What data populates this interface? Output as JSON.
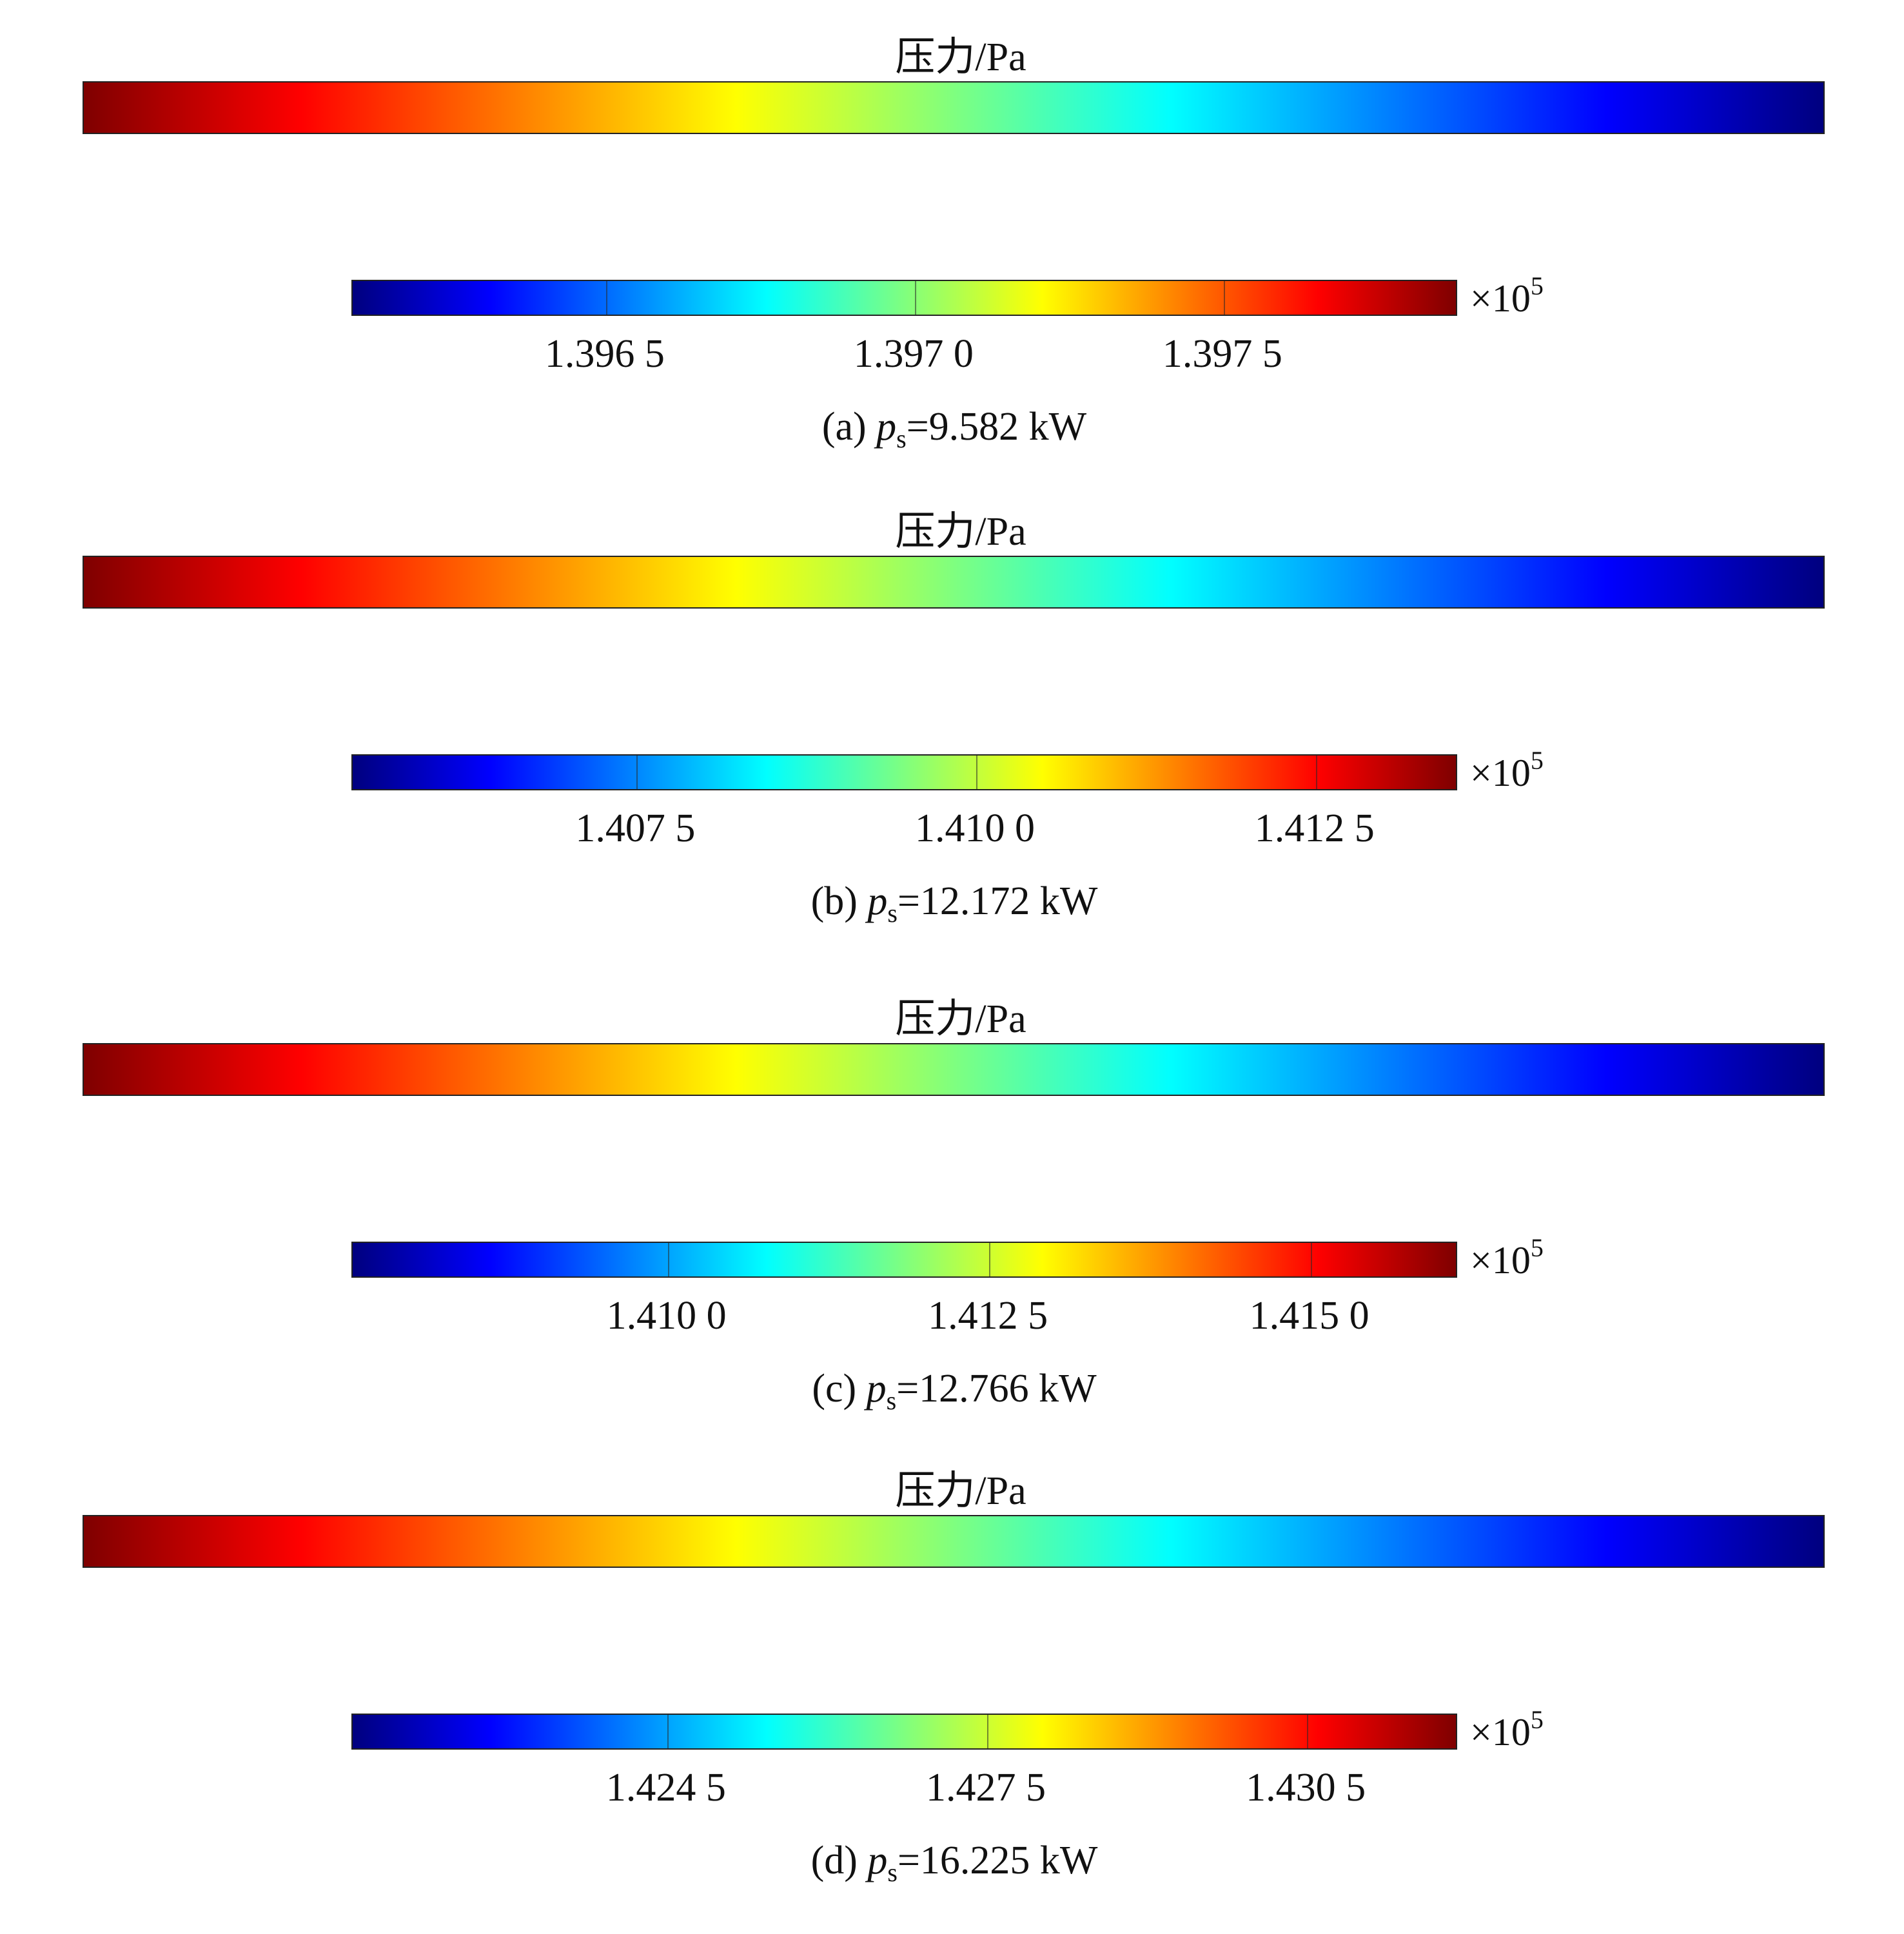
{
  "colors": {
    "colormap": [
      "#00007f",
      "#0000ff",
      "#007fff",
      "#00ffff",
      "#7fff7f",
      "#ffff00",
      "#ff7f00",
      "#ff0000",
      "#7f0000"
    ]
  },
  "chart_data": [
    {
      "type": "heatmap",
      "title": "压力/Pa",
      "caption_prefix": "(a) ",
      "caption_var": "p",
      "caption_sub": "s",
      "caption_value": "=9.582 kW",
      "colorbar": {
        "multiplier_base": "×10",
        "multiplier_exp": "5",
        "tick_labels": [
          "1.396 5",
          "1.397 0",
          "1.397 5"
        ],
        "tick_values": [
          1.3965,
          1.397,
          1.3975
        ],
        "range": [
          1.39609,
          1.39788
        ],
        "colormap": "jet"
      },
      "field_direction": "high-left-to-low-right"
    },
    {
      "type": "heatmap",
      "title": "压力/Pa",
      "caption_prefix": "(b) ",
      "caption_var": "p",
      "caption_sub": "s",
      "caption_value": "=12.172 kW",
      "colorbar": {
        "multiplier_base": "×10",
        "multiplier_exp": "5",
        "tick_labels": [
          "1.407 5",
          "1.410 0",
          "1.412 5"
        ],
        "tick_values": [
          1.4075,
          1.41,
          1.4125
        ],
        "range": [
          1.40541,
          1.41355
        ],
        "colormap": "jet"
      },
      "field_direction": "high-left-to-low-right"
    },
    {
      "type": "heatmap",
      "title": "压力/Pa",
      "caption_prefix": "(c) ",
      "caption_var": "p",
      "caption_sub": "s",
      "caption_value": "=12.766 kW",
      "colorbar": {
        "multiplier_base": "×10",
        "multiplier_exp": "5",
        "tick_labels": [
          "1.410 0",
          "1.412 5",
          "1.415 0"
        ],
        "tick_values": [
          1.41,
          1.4125,
          1.415
        ],
        "range": [
          1.40755,
          1.41615
        ],
        "colormap": "jet"
      },
      "field_direction": "high-left-to-low-right"
    },
    {
      "type": "heatmap",
      "title": "压力/Pa",
      "caption_prefix": "(d) ",
      "caption_var": "p",
      "caption_sub": "s",
      "caption_value": "=16.225 kW",
      "colorbar": {
        "multiplier_base": "×10",
        "multiplier_exp": "5",
        "tick_labels": [
          "1.424 5",
          "1.427 5",
          "1.430 5"
        ],
        "tick_values": [
          1.4245,
          1.4275,
          1.4305
        ],
        "range": [
          1.42155,
          1.43192
        ],
        "colormap": "jet"
      },
      "field_direction": "high-left-to-low-right"
    }
  ]
}
